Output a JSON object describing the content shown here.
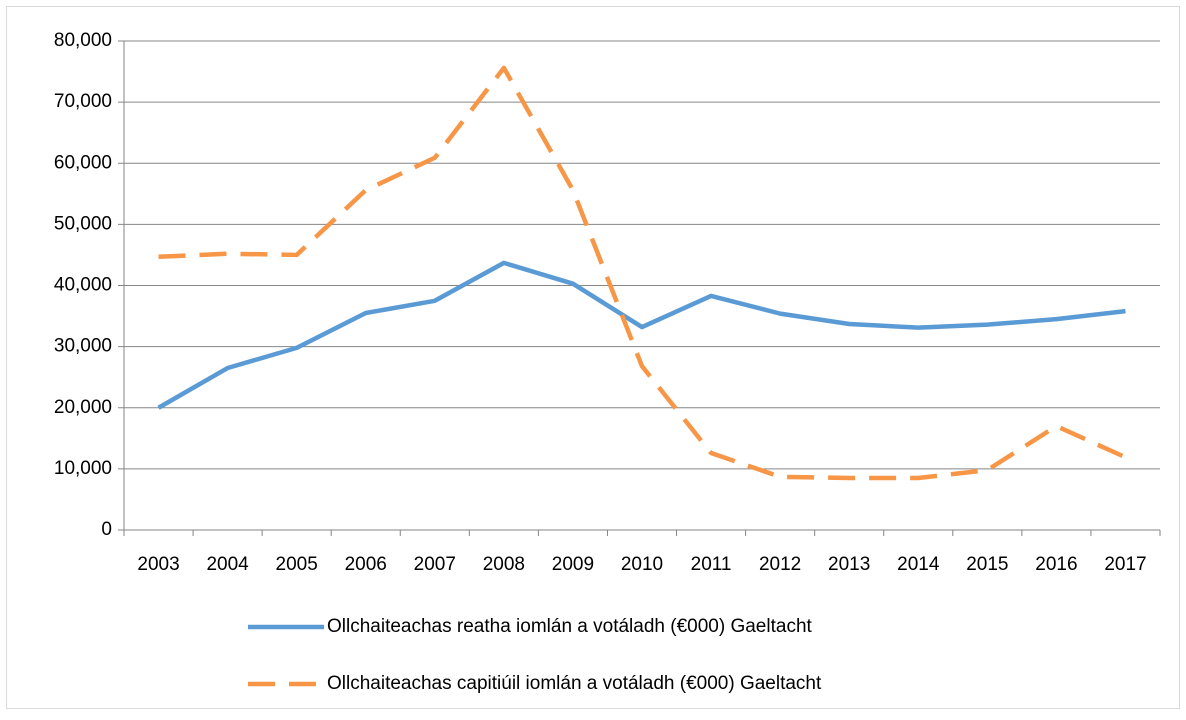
{
  "chart_data": {
    "type": "line",
    "categories": [
      "2003",
      "2004",
      "2005",
      "2006",
      "2007",
      "2008",
      "2009",
      "2010",
      "2011",
      "2012",
      "2013",
      "2014",
      "2015",
      "2016",
      "2017"
    ],
    "series": [
      {
        "name": "Ollchaiteachas reatha iomlán a votáladh (€000) Gaeltacht",
        "color": "#5b9bd5",
        "dash": false,
        "values": [
          20000,
          26500,
          29800,
          35500,
          37500,
          43700,
          40300,
          33200,
          38300,
          35400,
          33700,
          33100,
          33600,
          34500,
          35800
        ]
      },
      {
        "name": "Ollchaiteachas capitiúil iomlán a votáladh (€000) Gaeltacht",
        "color": "#f79646",
        "dash": true,
        "values": [
          44700,
          45200,
          45000,
          55600,
          60900,
          75600,
          55600,
          26800,
          12600,
          8700,
          8500,
          8500,
          9800,
          17000,
          11900
        ]
      }
    ],
    "ylim": [
      0,
      80000
    ],
    "yticks": [
      0,
      {
        "value": 10000,
        "label": "10,000"
      },
      {
        "value": 20000,
        "label": "20,000"
      },
      {
        "value": 30000,
        "label": "30,000"
      },
      {
        "value": 40000,
        "label": "40,000"
      },
      {
        "value": 50000,
        "label": "50,000"
      },
      {
        "value": 60000,
        "label": "60,000"
      },
      {
        "value": 70000,
        "label": "70,000"
      },
      {
        "value": 80000,
        "label": "80,000"
      }
    ],
    "grid": true,
    "legend": "bottom"
  }
}
